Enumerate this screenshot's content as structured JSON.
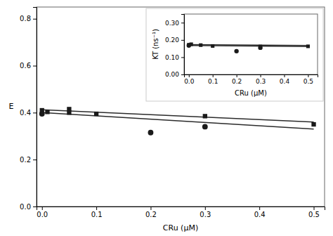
{
  "chart_data": [
    {
      "type": "scatter",
      "x_label": "CRu (μM)",
      "y_label": "E",
      "xlim": [
        -0.01,
        0.52
      ],
      "ylim": [
        0.0,
        0.85
      ],
      "xticks": [
        {
          "value": 0.0,
          "label": "0.0"
        },
        0.1,
        0.2,
        0.3,
        0.4,
        0.5
      ],
      "yticks": [
        {
          "value": 0.0,
          "label": "0.0"
        },
        0.2,
        0.4,
        0.6,
        0.8
      ],
      "series": [
        {
          "type": "line",
          "color": "#2b2b2b",
          "x": [
            0.0,
            0.5
          ],
          "values": [
            0.412,
            0.36
          ]
        },
        {
          "type": "line",
          "color": "#2b2b2b",
          "x": [
            0.0,
            0.5
          ],
          "values": [
            0.4,
            0.33
          ]
        },
        {
          "type": "scatter",
          "marker": "square",
          "color": "#1a1a1a",
          "x": [
            0.0,
            0.01,
            0.05,
            0.05,
            0.1,
            0.3,
            0.5
          ],
          "values": [
            0.41,
            0.403,
            0.415,
            0.4,
            0.395,
            0.385,
            0.35
          ]
        },
        {
          "type": "scatter",
          "marker": "circle",
          "color": "#1a1a1a",
          "x": [
            0.0,
            0.2,
            0.3
          ],
          "values": [
            0.395,
            0.315,
            0.34
          ]
        }
      ]
    },
    {
      "type": "scatter",
      "x_label": "CRu (μM)",
      "y_label": "KT (ns⁻¹)",
      "xlim": [
        -0.02,
        0.54
      ],
      "ylim": [
        0.0,
        0.35
      ],
      "xticks": [
        {
          "value": 0.0,
          "label": "0.0"
        },
        0.1,
        0.2,
        0.3,
        0.4,
        0.5
      ],
      "yticks": [
        {
          "value": 0.0,
          "label": "0.00"
        },
        {
          "value": 0.1,
          "label": "0.10"
        },
        {
          "value": 0.2,
          "label": "0.20"
        },
        {
          "value": 0.3,
          "label": "0.30"
        }
      ],
      "series": [
        {
          "type": "line",
          "color": "#2b2b2b",
          "x": [
            0.0,
            0.5
          ],
          "values": [
            0.173,
            0.168
          ]
        },
        {
          "type": "line",
          "color": "#2b2b2b",
          "x": [
            0.0,
            0.5
          ],
          "values": [
            0.168,
            0.162
          ]
        },
        {
          "type": "scatter",
          "marker": "square",
          "color": "#1a1a1a",
          "x": [
            0.0,
            0.01,
            0.05,
            0.1,
            0.3,
            0.5
          ],
          "values": [
            0.172,
            0.175,
            0.17,
            0.165,
            0.162,
            0.163
          ]
        },
        {
          "type": "scatter",
          "marker": "circle",
          "color": "#1a1a1a",
          "x": [
            0.0,
            0.2,
            0.3
          ],
          "values": [
            0.168,
            0.135,
            0.155
          ]
        }
      ]
    }
  ]
}
